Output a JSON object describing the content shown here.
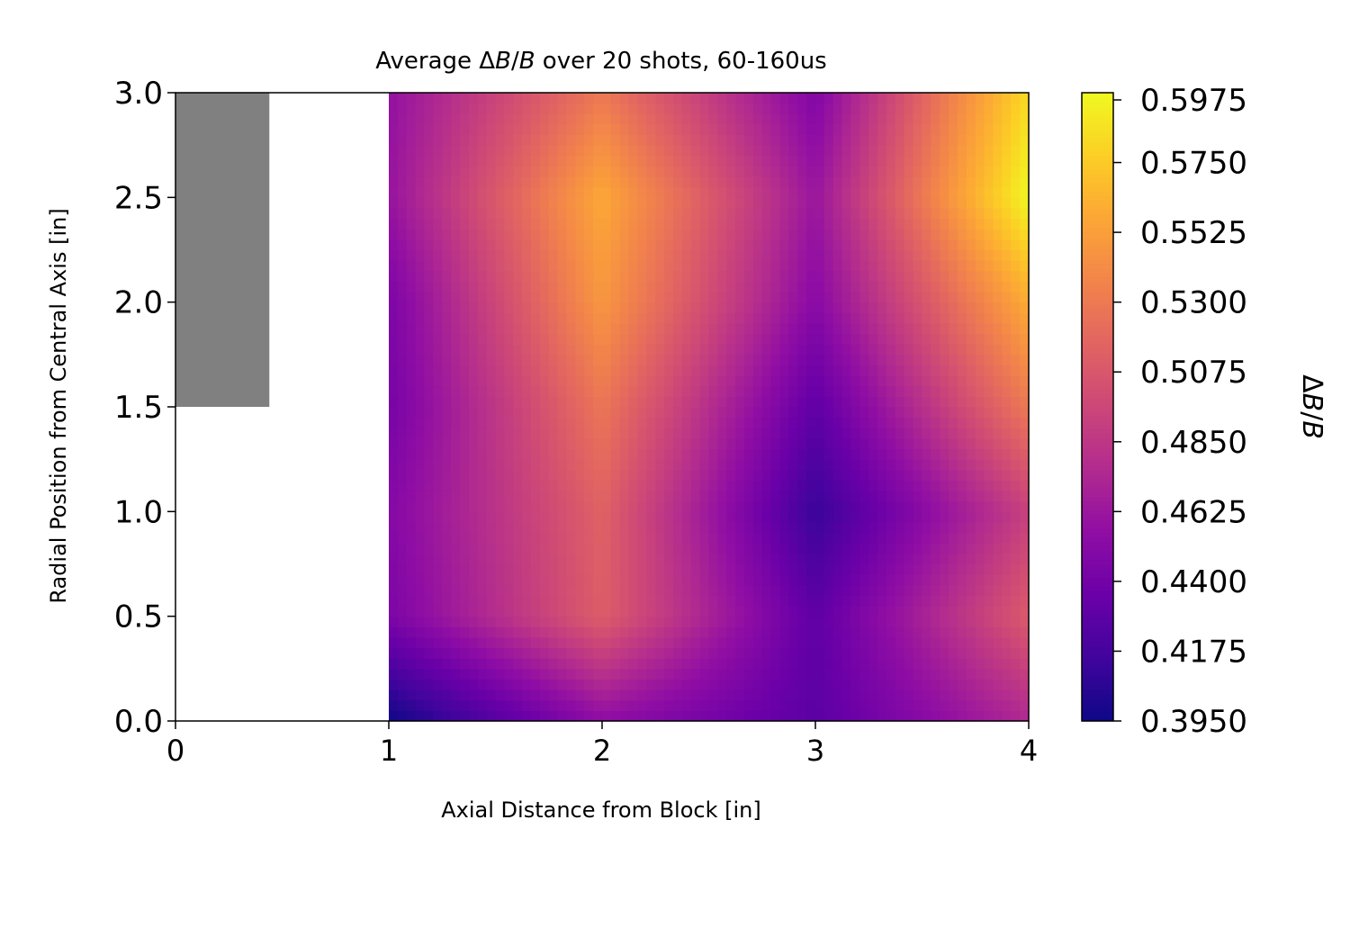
{
  "chart_data": {
    "type": "heatmap",
    "title": "Average ΔB/B over 20 shots, 60-160us",
    "title_parts": {
      "prefix": "Average ",
      "delta": "Δ",
      "b1": "B",
      "slash": "/",
      "b2": "B",
      "suffix": " over 20 shots, 60-160us"
    },
    "xlabel": "Axial Distance from Block [in]",
    "ylabel": "Radial Position from Central Axis [in]",
    "colorbar_label": "ΔB/B",
    "colorbar_label_parts": {
      "delta": "Δ",
      "b1": "B",
      "slash": "/",
      "b2": "B"
    },
    "xlim": [
      0,
      4
    ],
    "ylim": [
      0,
      3.0
    ],
    "x_ticks": [
      0,
      1,
      2,
      3,
      4
    ],
    "x_tick_labels": [
      "0",
      "1",
      "2",
      "3",
      "4"
    ],
    "y_ticks": [
      0,
      0.5,
      1.0,
      1.5,
      2.0,
      2.5,
      3.0
    ],
    "y_tick_labels": [
      "0.0",
      "0.5",
      "1.0",
      "1.5",
      "2.0",
      "2.5",
      "3.0"
    ],
    "colorbar_range": [
      0.395,
      0.5975
    ],
    "colorbar_ticks": [
      0.395,
      0.4175,
      0.44,
      0.4625,
      0.485,
      0.5075,
      0.53,
      0.5525,
      0.575,
      0.5975
    ],
    "colorbar_tick_labels": [
      "0.3950",
      "0.4175",
      "0.4400",
      "0.4625",
      "0.4850",
      "0.5075",
      "0.5300",
      "0.5525",
      "0.5750",
      "0.5975"
    ],
    "colormap": "plasma",
    "x": [
      1,
      2,
      3,
      4
    ],
    "y": [
      0,
      0.5,
      1.0,
      1.5,
      2.0,
      2.5,
      3.0
    ],
    "z": [
      [
        0.395,
        0.455,
        0.428,
        0.475
      ],
      [
        0.445,
        0.512,
        0.43,
        0.51
      ],
      [
        0.45,
        0.515,
        0.412,
        0.492
      ],
      [
        0.442,
        0.528,
        0.43,
        0.53
      ],
      [
        0.445,
        0.548,
        0.452,
        0.56
      ],
      [
        0.46,
        0.558,
        0.462,
        0.597
      ],
      [
        0.458,
        0.53,
        0.448,
        0.583
      ]
    ],
    "block": {
      "x": [
        0,
        0.44
      ],
      "y": [
        1.5,
        3.0
      ],
      "color": "#808080"
    },
    "grid": false
  }
}
